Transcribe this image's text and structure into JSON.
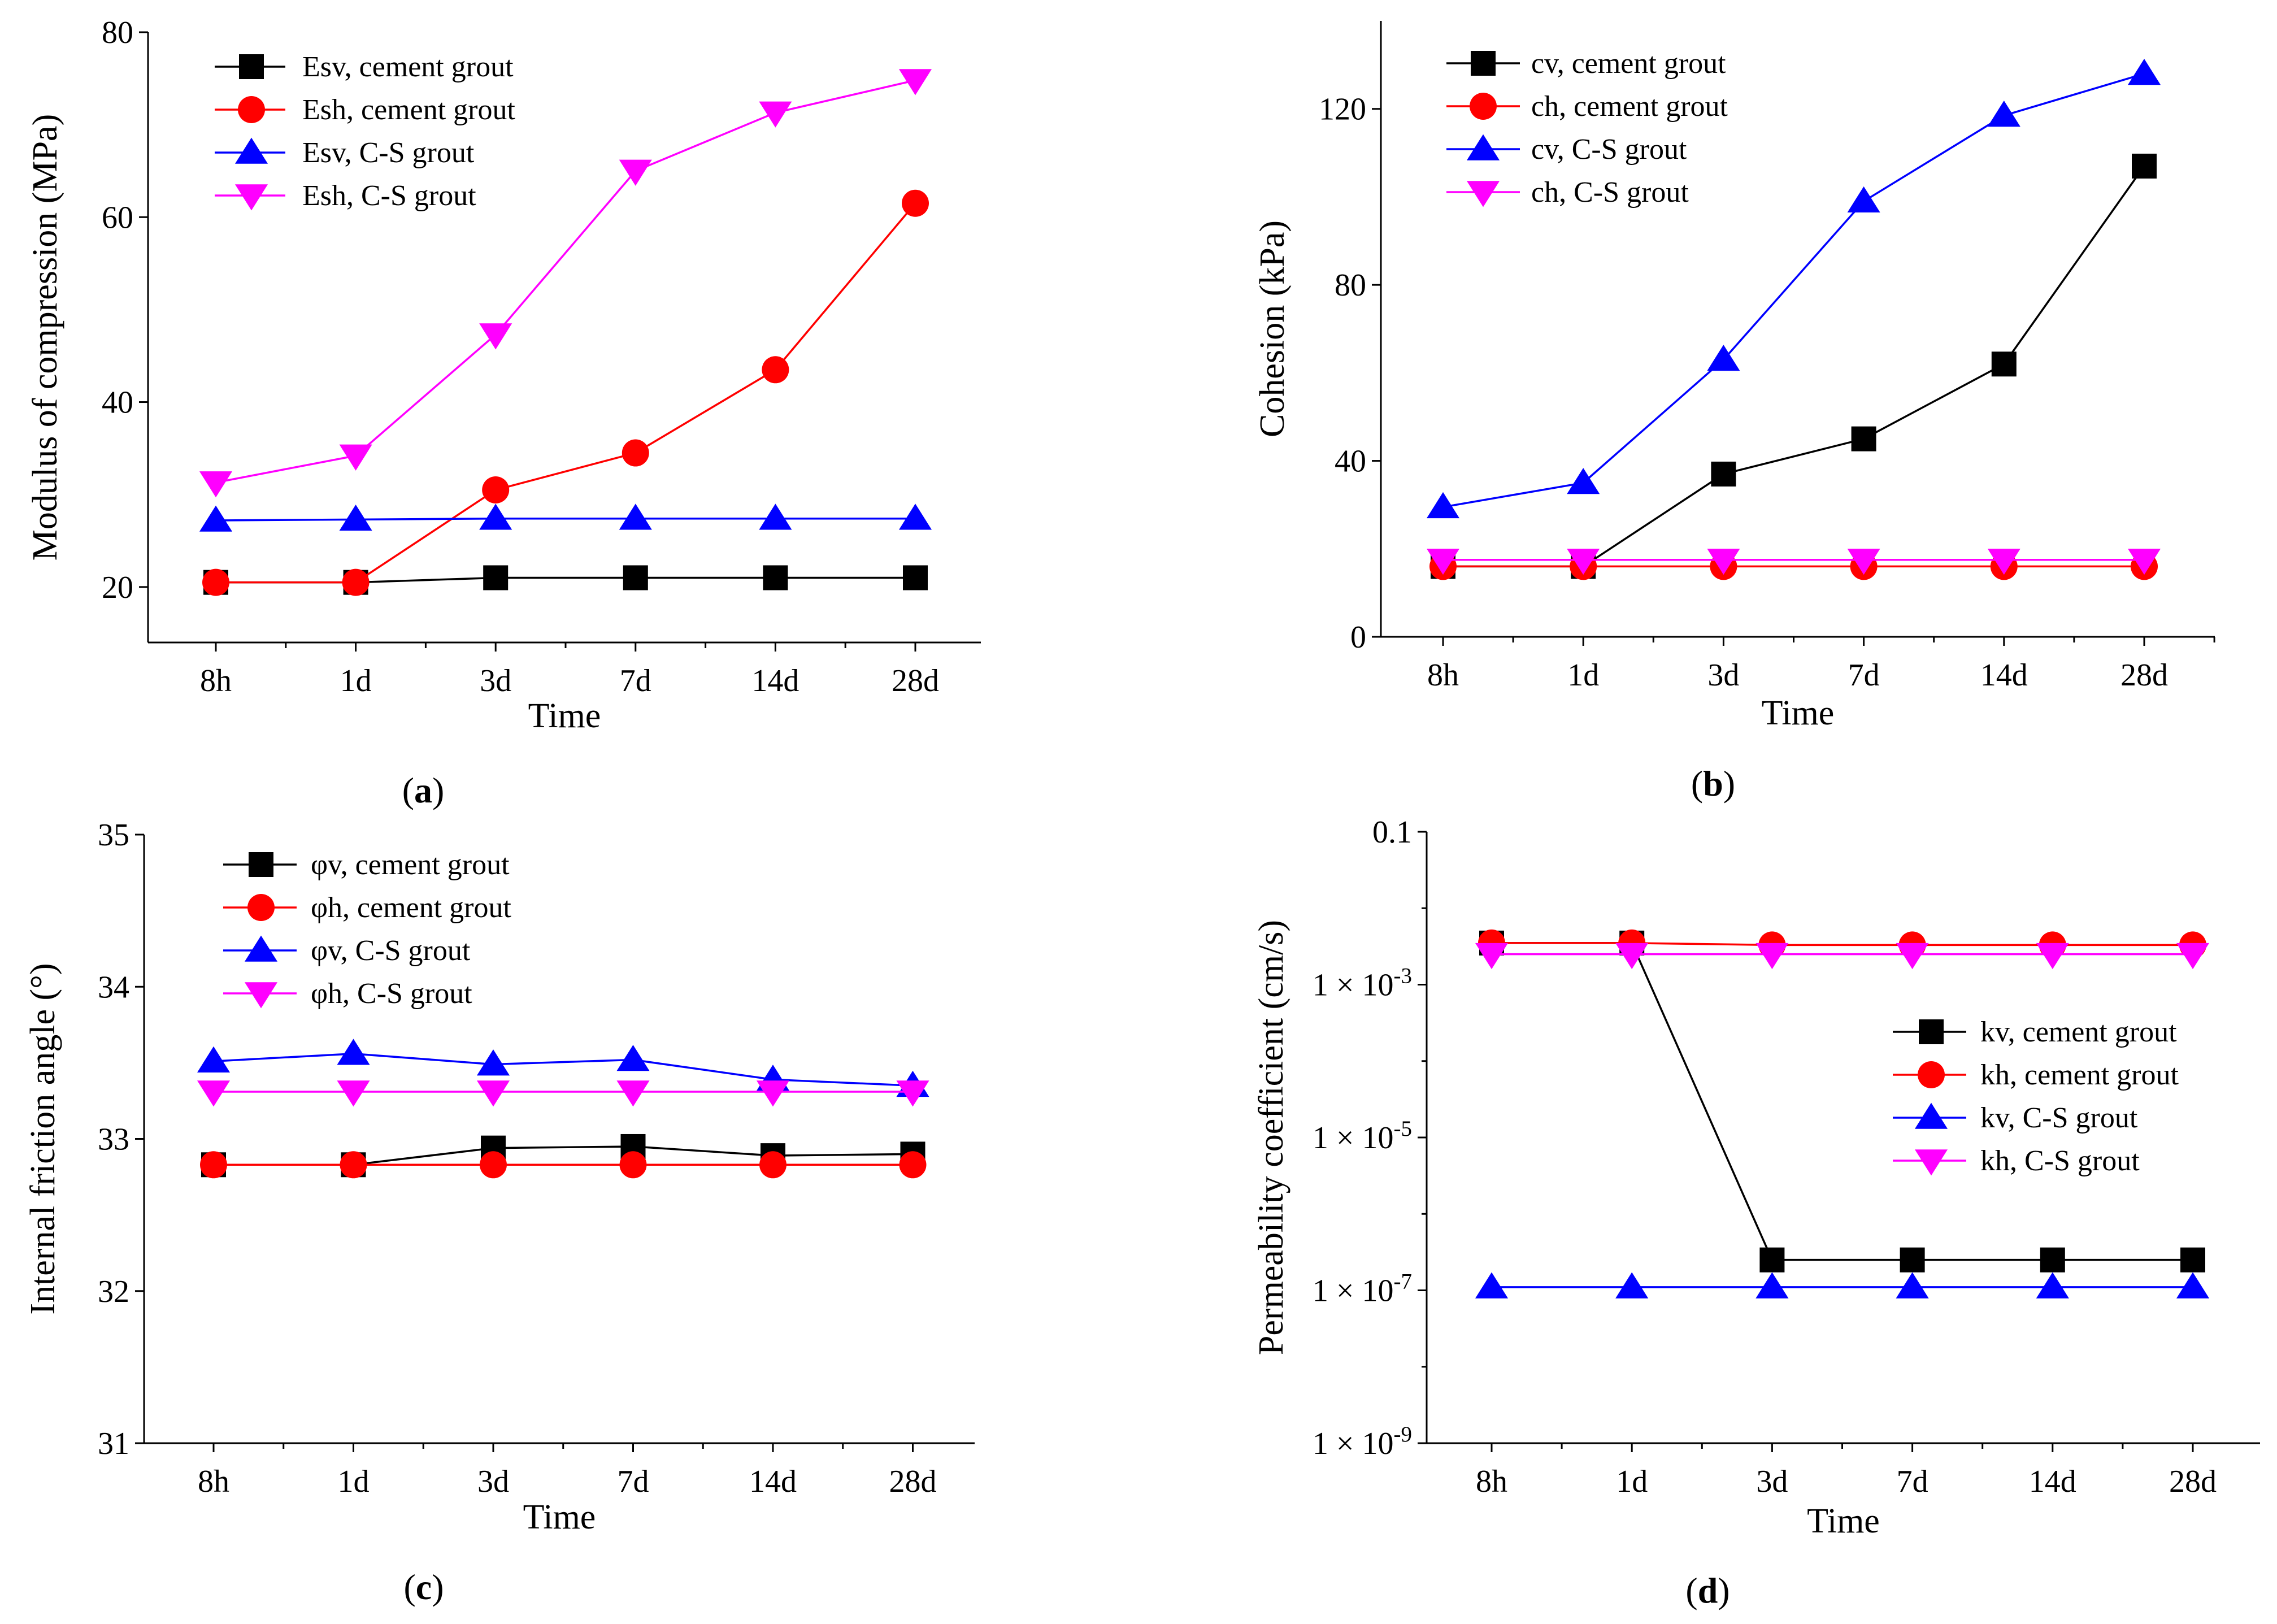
{
  "chart_data": [
    {
      "id": "a",
      "type": "line",
      "caption": "(a)",
      "xlabel": "Time",
      "ylabel": "Modulus of compression (MPa)",
      "categories": [
        "8h",
        "1d",
        "3d",
        "7d",
        "14d",
        "28d"
      ],
      "ylim": [
        14,
        80
      ],
      "yscale": "linear",
      "yticks": [
        20,
        40,
        60,
        80
      ],
      "ytick_labels": [
        "20",
        "40",
        "60",
        "80"
      ],
      "legend_position": "top-left",
      "series": [
        {
          "name": "Esv, cement grout",
          "color": "#000000",
          "marker": "square",
          "values": [
            20.5,
            20.5,
            21.0,
            21.0,
            21.0,
            21.0
          ]
        },
        {
          "name": "Esh, cement grout",
          "color": "#ff0000",
          "marker": "circle",
          "values": [
            20.5,
            20.5,
            30.5,
            34.5,
            43.5,
            61.5
          ]
        },
        {
          "name": "Esv, C-S grout",
          "color": "#0000ff",
          "marker": "triangle-up",
          "values": [
            27.2,
            27.3,
            27.4,
            27.4,
            27.4,
            27.4
          ]
        },
        {
          "name": "Esh, C-S grout",
          "color": "#ff00ff",
          "marker": "triangle-down",
          "values": [
            31.3,
            34.2,
            47.3,
            65.0,
            71.3,
            74.8
          ]
        }
      ]
    },
    {
      "id": "b",
      "type": "line",
      "caption": "(b)",
      "xlabel": "Time",
      "ylabel": "Cohesion (kPa)",
      "categories": [
        "8h",
        "1d",
        "3d",
        "7d",
        "14d",
        "28d"
      ],
      "ylim": [
        0,
        140
      ],
      "yscale": "linear",
      "yticks": [
        0,
        40,
        80,
        120
      ],
      "ytick_labels": [
        "0",
        "40",
        "80",
        "120"
      ],
      "legend_position": "top-left",
      "series": [
        {
          "name": "cv, cement grout",
          "color": "#000000",
          "marker": "square",
          "values": [
            16.0,
            16.0,
            37.0,
            45.0,
            62.0,
            107.0
          ]
        },
        {
          "name": "ch, cement grout",
          "color": "#ff0000",
          "marker": "circle",
          "values": [
            16.0,
            16.0,
            16.0,
            16.0,
            16.0,
            16.0
          ]
        },
        {
          "name": "cv, C-S grout",
          "color": "#0000ff",
          "marker": "triangle-up",
          "values": [
            29.5,
            35.0,
            63.0,
            99.0,
            118.5,
            128.0
          ]
        },
        {
          "name": "ch, C-S grout",
          "color": "#ff00ff",
          "marker": "triangle-down",
          "values": [
            17.5,
            17.5,
            17.5,
            17.5,
            17.5,
            17.5
          ]
        }
      ]
    },
    {
      "id": "c",
      "type": "line",
      "caption": "(c)",
      "xlabel": "Time",
      "ylabel": "Internal friction angle (°)",
      "categories": [
        "8h",
        "1d",
        "3d",
        "7d",
        "14d",
        "28d"
      ],
      "ylim": [
        31,
        35
      ],
      "yscale": "linear",
      "yticks": [
        31,
        32,
        33,
        34,
        35
      ],
      "ytick_labels": [
        "31",
        "32",
        "33",
        "34",
        "35"
      ],
      "legend_position": "top-left",
      "series": [
        {
          "name": "φv, cement grout",
          "color": "#000000",
          "marker": "square",
          "values": [
            32.83,
            32.83,
            32.94,
            32.95,
            32.89,
            32.9
          ]
        },
        {
          "name": "φh, cement grout",
          "color": "#ff0000",
          "marker": "circle",
          "values": [
            32.83,
            32.83,
            32.83,
            32.83,
            32.83,
            32.83
          ]
        },
        {
          "name": "φv, C-S grout",
          "color": "#0000ff",
          "marker": "triangle-up",
          "values": [
            33.51,
            33.56,
            33.49,
            33.52,
            33.39,
            33.35
          ]
        },
        {
          "name": "φh, C-S grout",
          "color": "#ff00ff",
          "marker": "triangle-down",
          "values": [
            33.31,
            33.31,
            33.31,
            33.31,
            33.31,
            33.31
          ]
        }
      ]
    },
    {
      "id": "d",
      "type": "line",
      "caption": "(d)",
      "xlabel": "Time",
      "ylabel": "Permeability coefficient (cm/s)",
      "categories": [
        "8h",
        "1d",
        "3d",
        "7d",
        "14d",
        "28d"
      ],
      "ylim": [
        1e-09,
        0.1
      ],
      "yscale": "log",
      "yticks": [
        1e-09,
        1e-07,
        1e-05,
        0.001,
        0.1
      ],
      "ytick_labels": [
        "1 × 10-9",
        "1 × 10-7",
        "1 × 10-5",
        "1 × 10-3",
        "0.1"
      ],
      "legend_position": "center-right",
      "series": [
        {
          "name": "kv, cement grout",
          "color": "#000000",
          "marker": "square",
          "values": [
            0.0035,
            0.0035,
            2.5e-07,
            2.5e-07,
            2.5e-07,
            2.5e-07
          ]
        },
        {
          "name": "kh, cement grout",
          "color": "#ff0000",
          "marker": "circle",
          "values": [
            0.0035,
            0.0035,
            0.0033,
            0.0033,
            0.0033,
            0.0033
          ]
        },
        {
          "name": "kv, C-S grout",
          "color": "#0000ff",
          "marker": "triangle-up",
          "values": [
            1.1e-07,
            1.1e-07,
            1.1e-07,
            1.1e-07,
            1.1e-07,
            1.1e-07
          ]
        },
        {
          "name": "kh, C-S grout",
          "color": "#ff00ff",
          "marker": "triangle-down",
          "values": [
            0.0025,
            0.0025,
            0.0025,
            0.0025,
            0.0025,
            0.0025
          ]
        }
      ]
    }
  ]
}
